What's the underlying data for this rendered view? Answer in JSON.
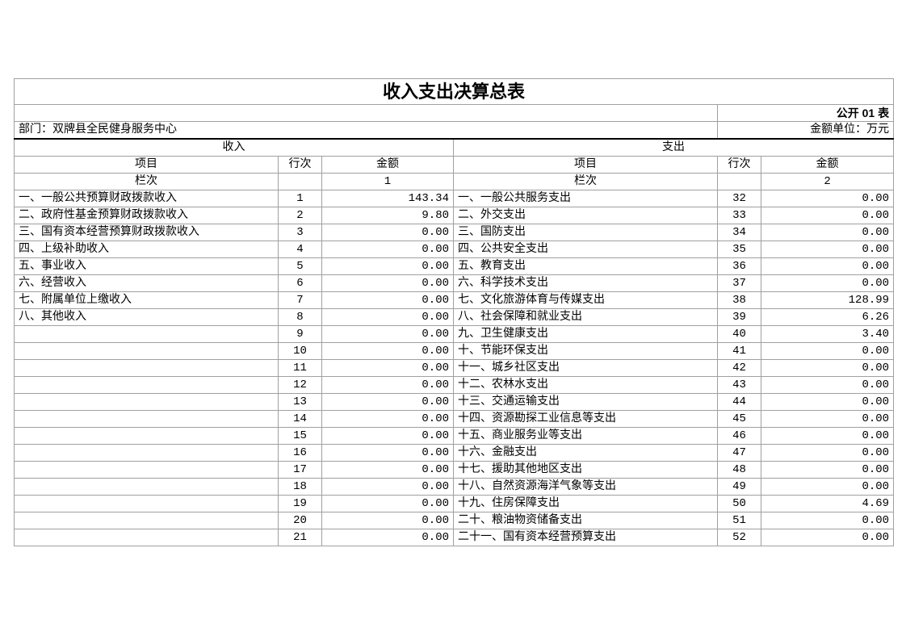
{
  "title": "收入支出决算总表",
  "form_code": "公开 01 表",
  "department": "部门：双牌县全民健身服务中心",
  "unit": "金额单位：万元",
  "headers": {
    "income": "收入",
    "expense": "支出",
    "item": "项目",
    "row_no": "行次",
    "amount": "金额",
    "column_no": "栏次",
    "income_col": "1",
    "expense_col": "2"
  },
  "rows": [
    {
      "in_item": "一、一般公共预算财政拨款收入",
      "in_no": "1",
      "in_amt": "143.34",
      "ex_item": "一、一般公共服务支出",
      "ex_no": "32",
      "ex_amt": "0.00"
    },
    {
      "in_item": "二、政府性基金预算财政拨款收入",
      "in_no": "2",
      "in_amt": "9.80",
      "ex_item": "二、外交支出",
      "ex_no": "33",
      "ex_amt": "0.00"
    },
    {
      "in_item": "三、国有资本经营预算财政拨款收入",
      "in_no": "3",
      "in_amt": "0.00",
      "ex_item": "三、国防支出",
      "ex_no": "34",
      "ex_amt": "0.00"
    },
    {
      "in_item": "四、上级补助收入",
      "in_no": "4",
      "in_amt": "0.00",
      "ex_item": "四、公共安全支出",
      "ex_no": "35",
      "ex_amt": "0.00"
    },
    {
      "in_item": "五、事业收入",
      "in_no": "5",
      "in_amt": "0.00",
      "ex_item": "五、教育支出",
      "ex_no": "36",
      "ex_amt": "0.00"
    },
    {
      "in_item": "六、经营收入",
      "in_no": "6",
      "in_amt": "0.00",
      "ex_item": "六、科学技术支出",
      "ex_no": "37",
      "ex_amt": "0.00"
    },
    {
      "in_item": "七、附属单位上缴收入",
      "in_no": "7",
      "in_amt": "0.00",
      "ex_item": "七、文化旅游体育与传媒支出",
      "ex_no": "38",
      "ex_amt": "128.99"
    },
    {
      "in_item": "八、其他收入",
      "in_no": "8",
      "in_amt": "0.00",
      "ex_item": "八、社会保障和就业支出",
      "ex_no": "39",
      "ex_amt": "6.26"
    },
    {
      "in_item": "",
      "in_no": "9",
      "in_amt": "0.00",
      "ex_item": "九、卫生健康支出",
      "ex_no": "40",
      "ex_amt": "3.40"
    },
    {
      "in_item": "",
      "in_no": "10",
      "in_amt": "0.00",
      "ex_item": "十、节能环保支出",
      "ex_no": "41",
      "ex_amt": "0.00"
    },
    {
      "in_item": "",
      "in_no": "11",
      "in_amt": "0.00",
      "ex_item": "十一、城乡社区支出",
      "ex_no": "42",
      "ex_amt": "0.00"
    },
    {
      "in_item": "",
      "in_no": "12",
      "in_amt": "0.00",
      "ex_item": "十二、农林水支出",
      "ex_no": "43",
      "ex_amt": "0.00"
    },
    {
      "in_item": "",
      "in_no": "13",
      "in_amt": "0.00",
      "ex_item": "十三、交通运输支出",
      "ex_no": "44",
      "ex_amt": "0.00"
    },
    {
      "in_item": "",
      "in_no": "14",
      "in_amt": "0.00",
      "ex_item": "十四、资源勘探工业信息等支出",
      "ex_no": "45",
      "ex_amt": "0.00"
    },
    {
      "in_item": "",
      "in_no": "15",
      "in_amt": "0.00",
      "ex_item": "十五、商业服务业等支出",
      "ex_no": "46",
      "ex_amt": "0.00"
    },
    {
      "in_item": "",
      "in_no": "16",
      "in_amt": "0.00",
      "ex_item": "十六、金融支出",
      "ex_no": "47",
      "ex_amt": "0.00"
    },
    {
      "in_item": "",
      "in_no": "17",
      "in_amt": "0.00",
      "ex_item": "十七、援助其他地区支出",
      "ex_no": "48",
      "ex_amt": "0.00"
    },
    {
      "in_item": "",
      "in_no": "18",
      "in_amt": "0.00",
      "ex_item": "十八、自然资源海洋气象等支出",
      "ex_no": "49",
      "ex_amt": "0.00"
    },
    {
      "in_item": "",
      "in_no": "19",
      "in_amt": "0.00",
      "ex_item": "十九、住房保障支出",
      "ex_no": "50",
      "ex_amt": "4.69"
    },
    {
      "in_item": "",
      "in_no": "20",
      "in_amt": "0.00",
      "ex_item": "二十、粮油物资储备支出",
      "ex_no": "51",
      "ex_amt": "0.00"
    },
    {
      "in_item": "",
      "in_no": "21",
      "in_amt": "0.00",
      "ex_item": "二十一、国有资本经营预算支出",
      "ex_no": "52",
      "ex_amt": "0.00"
    }
  ]
}
